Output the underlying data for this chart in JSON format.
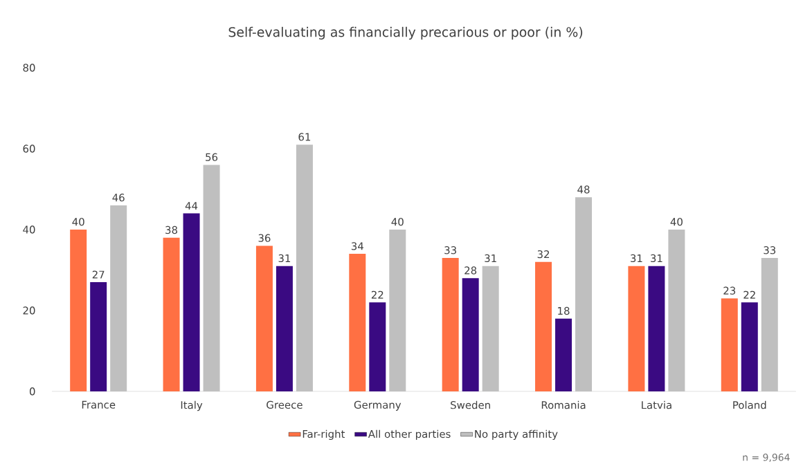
{
  "chart_data": {
    "type": "bar",
    "title": "Self-evaluating as financially precarious or poor (in %)",
    "categories": [
      "France",
      "Italy",
      "Greece",
      "Germany",
      "Sweden",
      "Romania",
      "Latvia",
      "Poland"
    ],
    "series": [
      {
        "name": "Far-right",
        "color": "#ff7043",
        "values": [
          40,
          38,
          36,
          34,
          33,
          32,
          31,
          23
        ]
      },
      {
        "name": "All other parties",
        "color": "#3a0a82",
        "values": [
          27,
          44,
          31,
          22,
          28,
          18,
          31,
          22
        ]
      },
      {
        "name": "No party affinity",
        "color": "#bfbfbf",
        "values": [
          46,
          56,
          61,
          40,
          31,
          48,
          40,
          33
        ]
      }
    ],
    "ylim": [
      0,
      80
    ],
    "yticks": [
      0,
      20,
      40,
      60,
      80
    ],
    "data_labels": true,
    "legend": "bottom",
    "grid": false,
    "annotations": [
      "n = 9,964"
    ]
  }
}
